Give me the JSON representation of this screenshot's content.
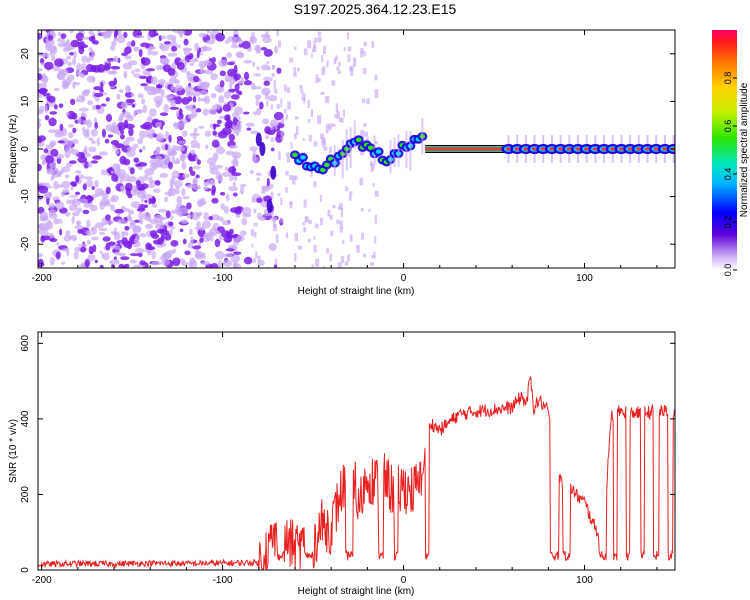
{
  "title": "S197.2025.364.12.23.E15",
  "colors": {
    "snr_line": "#e8211f",
    "pulse_core": "#e83a3a",
    "pulse_edge": "#00c8a0",
    "blob": "#7a1fe6",
    "blob_light": "#c9a8f5"
  },
  "chart_data": [
    {
      "type": "heatmap",
      "title": "S197.2025.364.12.23.E15",
      "xlabel": "Height of straight line (km)",
      "ylabel": "Frequency (Hz)",
      "xlim": [
        -202,
        150
      ],
      "ylim": [
        -25,
        25
      ],
      "xticks": [
        "-200",
        "-100",
        "0",
        "100"
      ],
      "yticks": [
        "-20",
        "-10",
        "0",
        "10",
        "20"
      ],
      "xtick_values": [
        -200,
        -100,
        0,
        100
      ],
      "ytick_values": [
        -20,
        -10,
        0,
        10,
        20
      ],
      "colorbar": {
        "label": "Normalized spectral amplitude",
        "range": [
          0,
          1
        ],
        "ticks": [
          "0.0",
          "0.2",
          "0.4",
          "0.6",
          "0.8"
        ],
        "tick_values": [
          0.0,
          0.2,
          0.4,
          0.6,
          0.8
        ]
      },
      "features": {
        "noise_region_km": [
          -202,
          -85
        ],
        "signal_onset_km": -55,
        "steady_tone_km": [
          12,
          58
        ],
        "steady_tone_hz": 0
      }
    },
    {
      "type": "line",
      "xlabel": "Height of straight line (km)",
      "ylabel": "SNR (10 * v/v)",
      "xlim": [
        -202,
        150
      ],
      "ylim": [
        0,
        630
      ],
      "xticks": [
        "-200",
        "-100",
        "0",
        "100"
      ],
      "yticks": [
        "0",
        "200",
        "400",
        "600"
      ],
      "xtick_values": [
        -200,
        -100,
        0,
        100
      ],
      "ytick_values": [
        0,
        200,
        400,
        600
      ],
      "series": [
        {
          "name": "SNR",
          "x": [
            -202,
            -180,
            -160,
            -140,
            -120,
            -100,
            -80,
            -78,
            -70,
            -60,
            -50,
            -45,
            -40,
            -35,
            -28,
            -25,
            -20,
            -15,
            -10,
            -5,
            0,
            5,
            10,
            12,
            15,
            20,
            25,
            30,
            40,
            50,
            60,
            65,
            68,
            70,
            72,
            75,
            80,
            85,
            88,
            90,
            95,
            100,
            105,
            110,
            115,
            120,
            130,
            140,
            150
          ],
          "values": [
            15,
            17,
            16,
            18,
            17,
            18,
            20,
            40,
            90,
            60,
            70,
            120,
            110,
            200,
            280,
            160,
            250,
            230,
            240,
            200,
            220,
            210,
            230,
            330,
            390,
            370,
            390,
            410,
            420,
            425,
            430,
            460,
            440,
            510,
            430,
            450,
            420,
            260,
            230,
            240,
            200,
            180,
            120,
            80,
            410,
            420,
            415,
            420,
            420
          ]
        }
      ]
    }
  ]
}
